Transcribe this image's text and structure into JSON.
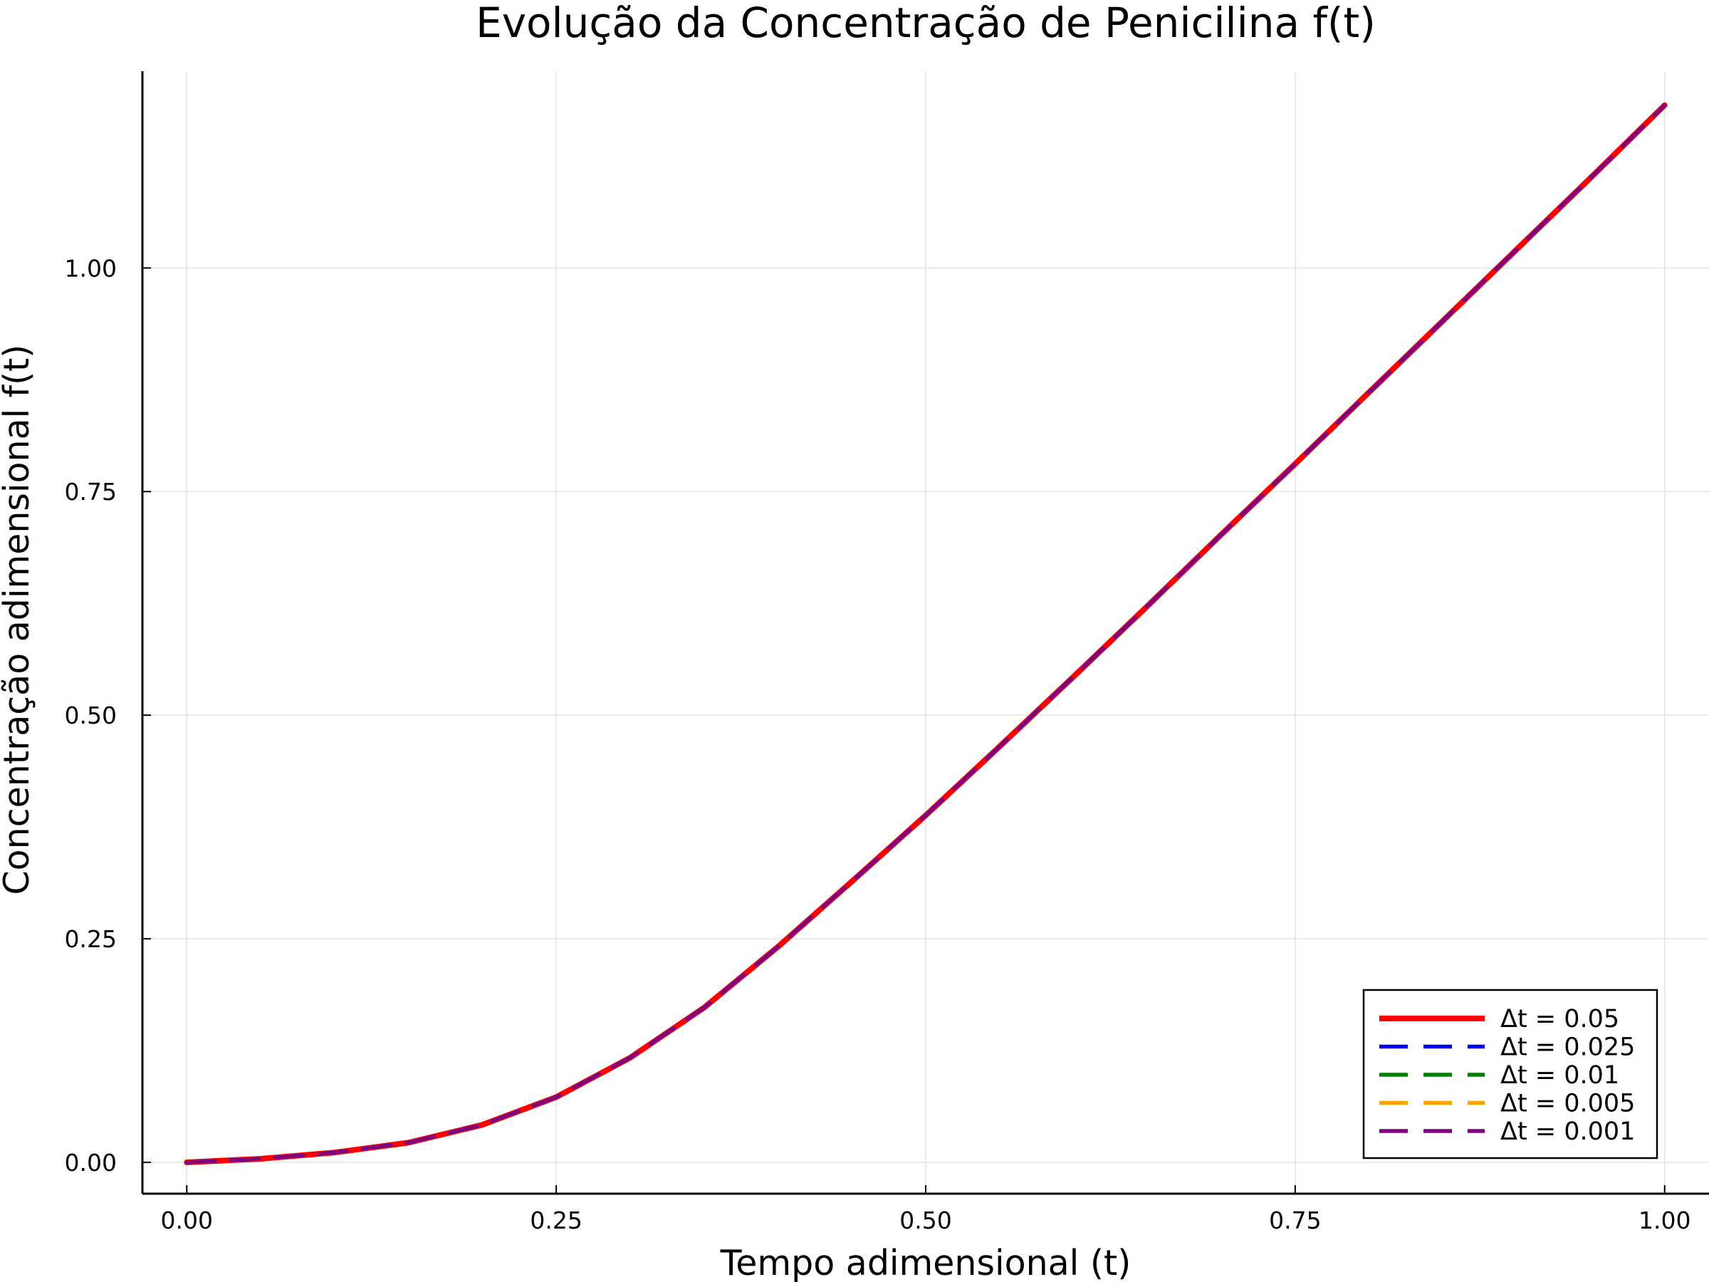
{
  "chart_data": {
    "type": "line",
    "title": "Evolução da Concentração de Penicilina f(t)",
    "xlabel": "Tempo adimensional (t)",
    "ylabel": "Concentração adimensional f(t)",
    "xlim": [
      -0.03,
      1.03
    ],
    "ylim": [
      -0.035,
      1.22
    ],
    "x_ticks": [
      0.0,
      0.25,
      0.5,
      0.75,
      1.0
    ],
    "x_tick_labels": [
      "0.00",
      "0.25",
      "0.50",
      "0.75",
      "1.00"
    ],
    "y_ticks": [
      0.0,
      0.25,
      0.5,
      0.75,
      1.0
    ],
    "y_tick_labels": [
      "0.00",
      "0.25",
      "0.50",
      "0.75",
      "1.00"
    ],
    "grid": true,
    "legend_position": "bottom-right",
    "x": [
      0.0,
      0.05,
      0.1,
      0.15,
      0.2,
      0.25,
      0.3,
      0.35,
      0.4,
      0.45,
      0.5,
      0.55,
      0.6,
      0.65,
      0.7,
      0.75,
      0.8,
      0.85,
      0.9,
      0.95,
      1.0
    ],
    "series": [
      {
        "name": "Δt = 0.05",
        "color": "#ff0000",
        "dash": "solid",
        "values": [
          0.0,
          0.004,
          0.011,
          0.022,
          0.042,
          0.073,
          0.117,
          0.173,
          0.241,
          0.314,
          0.388,
          0.465,
          0.543,
          0.622,
          0.702,
          0.781,
          0.861,
          0.941,
          1.021,
          1.101,
          1.182
        ]
      },
      {
        "name": "Δt = 0.025",
        "color": "#0000ff",
        "dash": "dashed",
        "values": [
          0.0,
          0.004,
          0.011,
          0.022,
          0.042,
          0.073,
          0.117,
          0.173,
          0.241,
          0.314,
          0.388,
          0.465,
          0.543,
          0.622,
          0.702,
          0.781,
          0.861,
          0.941,
          1.021,
          1.101,
          1.182
        ]
      },
      {
        "name": "Δt = 0.01",
        "color": "#008000",
        "dash": "dashed",
        "values": [
          0.0,
          0.004,
          0.011,
          0.022,
          0.042,
          0.073,
          0.117,
          0.173,
          0.241,
          0.314,
          0.388,
          0.465,
          0.543,
          0.622,
          0.702,
          0.781,
          0.861,
          0.941,
          1.021,
          1.101,
          1.182
        ]
      },
      {
        "name": "Δt = 0.005",
        "color": "#ffa500",
        "dash": "dashed",
        "values": [
          0.0,
          0.004,
          0.011,
          0.022,
          0.042,
          0.073,
          0.117,
          0.173,
          0.241,
          0.314,
          0.388,
          0.465,
          0.543,
          0.622,
          0.702,
          0.781,
          0.861,
          0.941,
          1.021,
          1.101,
          1.182
        ]
      },
      {
        "name": "Δt = 0.001",
        "color": "#800080",
        "dash": "dashed",
        "values": [
          0.0,
          0.004,
          0.011,
          0.022,
          0.042,
          0.073,
          0.117,
          0.173,
          0.241,
          0.314,
          0.388,
          0.465,
          0.543,
          0.622,
          0.702,
          0.781,
          0.861,
          0.941,
          1.021,
          1.101,
          1.182
        ]
      }
    ]
  }
}
